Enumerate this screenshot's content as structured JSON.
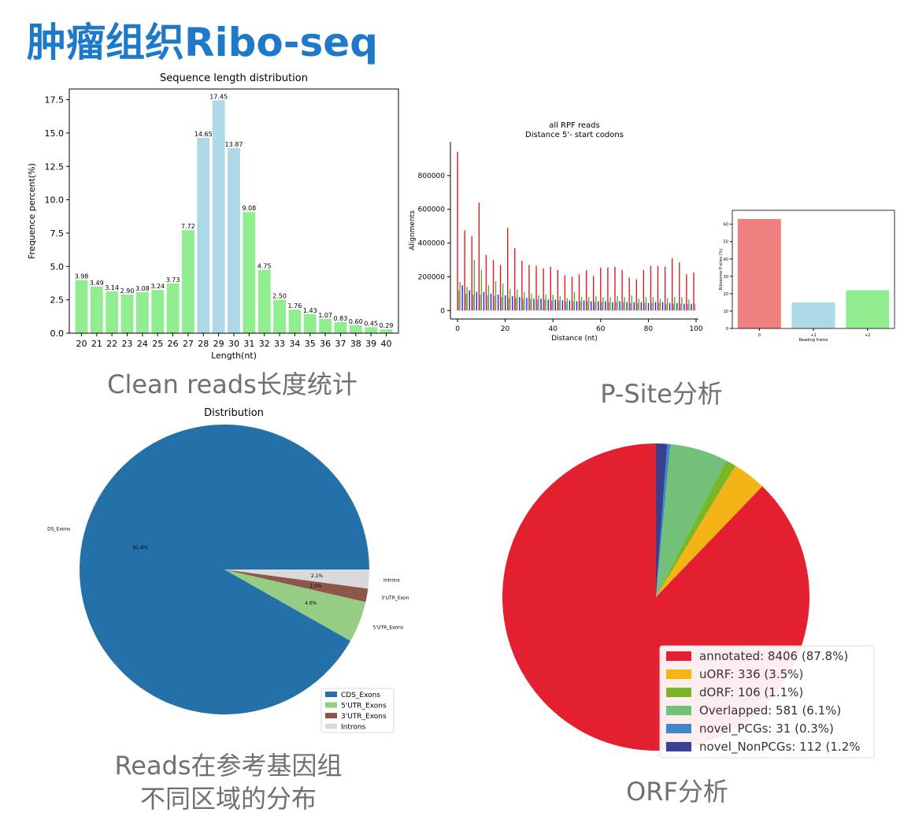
{
  "page_title": "肿瘤组织Ribo-seq",
  "captions": {
    "length": "Clean reads长度统计",
    "psite": "P-Site分析",
    "reads_line1": "Reads在参考基因组",
    "reads_line2": "不同区域的分布",
    "orf": "ORF分析"
  },
  "chart_data": [
    {
      "type": "bar",
      "title": "Sequence length distribution",
      "xlabel": "Length(nt)",
      "ylabel": "Frequence percent(%)",
      "ylim": [
        0,
        18.3
      ],
      "yticks": [
        "0.0",
        "2.5",
        "5.0",
        "7.5",
        "10.0",
        "12.5",
        "15.0",
        "17.5"
      ],
      "categories": [
        "20",
        "21",
        "22",
        "23",
        "24",
        "25",
        "26",
        "27",
        "28",
        "29",
        "30",
        "31",
        "32",
        "33",
        "34",
        "35",
        "36",
        "37",
        "38",
        "39",
        "40"
      ],
      "values": [
        3.98,
        3.49,
        3.14,
        2.9,
        3.08,
        3.24,
        3.73,
        7.72,
        14.65,
        17.45,
        13.87,
        9.08,
        4.75,
        2.5,
        1.76,
        1.43,
        1.07,
        0.83,
        0.6,
        0.45,
        0.29
      ],
      "labels": [
        "3.98",
        "3.49",
        "3.14",
        "2.90",
        "3.08",
        "3.24",
        "3.73",
        "7.72",
        "14.65",
        "17.45",
        "13.87",
        "9.08",
        "4.75",
        "2.50",
        "1.76",
        "1.43",
        "1.07",
        "0.83",
        "0.60",
        "0.45",
        "0.29"
      ],
      "highlight_categories": [
        "28",
        "29",
        "30"
      ],
      "colors": {
        "base": "#90ee90",
        "highlight": "#add8e6"
      }
    },
    {
      "type": "bar",
      "title_line1": "all RPF reads",
      "title_line2": "Distance 5'- start codons",
      "xlabel": "Distance (nt)",
      "ylabel": "Alignments",
      "xlim": [
        -3,
        101
      ],
      "ylim": [
        -50000,
        1000000
      ],
      "xticks": [
        "0",
        "20",
        "40",
        "60",
        "80",
        "100"
      ],
      "yticks": [
        "0",
        "200000",
        "400000",
        "600000",
        "800000"
      ],
      "series": [
        {
          "color": "#e41a1c",
          "x": [
            0,
            3,
            6,
            9,
            12,
            15,
            18,
            21,
            24,
            27,
            30,
            33,
            36,
            39,
            42,
            45,
            48,
            51,
            54,
            57,
            60,
            63,
            66,
            69,
            72,
            75,
            78,
            81,
            84,
            87,
            90,
            93,
            96,
            99
          ],
          "values": [
            940000,
            475000,
            440000,
            640000,
            330000,
            300000,
            270000,
            490000,
            370000,
            295000,
            270000,
            265000,
            250000,
            260000,
            240000,
            210000,
            200000,
            215000,
            240000,
            205000,
            255000,
            255000,
            260000,
            240000,
            195000,
            185000,
            240000,
            265000,
            265000,
            260000,
            310000,
            285000,
            215000,
            225000
          ]
        },
        {
          "color": "#4daf4a",
          "x": [
            1,
            4,
            7,
            10,
            13,
            16,
            19,
            22,
            25,
            28,
            31,
            34,
            37,
            40,
            43,
            46,
            49,
            52,
            55,
            58,
            61,
            64,
            67,
            70,
            73,
            76,
            79,
            82,
            85,
            88,
            91,
            94,
            97
          ],
          "values": [
            170000,
            140000,
            300000,
            240000,
            150000,
            175000,
            160000,
            130000,
            125000,
            110000,
            100000,
            90000,
            95000,
            95000,
            85000,
            75000,
            110000,
            80000,
            80000,
            85000,
            80000,
            80000,
            85000,
            80000,
            90000,
            70000,
            80000,
            80000,
            70000,
            75000,
            80000,
            80000,
            65000
          ]
        },
        {
          "color": "#2020e0",
          "x": [
            2,
            5,
            8,
            11,
            14,
            17,
            20,
            23,
            26,
            29,
            32,
            35,
            38,
            41,
            44,
            47,
            50,
            53,
            56,
            59,
            62,
            65,
            68,
            71,
            74,
            77,
            80,
            83,
            86,
            89,
            92,
            95,
            98
          ],
          "values": [
            150000,
            120000,
            110000,
            110000,
            100000,
            95000,
            90000,
            85000,
            80000,
            75000,
            70000,
            70000,
            65000,
            65000,
            60000,
            60000,
            55000,
            60000,
            55000,
            55000,
            55000,
            50000,
            55000,
            50000,
            50000,
            50000,
            45000,
            50000,
            50000,
            45000,
            45000,
            40000,
            40000
          ]
        },
        {
          "color": "#999999",
          "x": [
            0.5,
            3.5,
            6.5,
            9.5,
            12.5,
            15.5,
            18.5,
            21.5,
            24.5,
            27.5,
            30.5,
            33.5,
            36.5,
            39.5,
            42.5,
            45.5,
            48.5,
            51.5,
            54.5,
            57.5,
            60.5,
            63.5,
            66.5,
            69.5,
            72.5,
            75.5,
            78.5,
            81.5,
            84.5,
            87.5,
            90.5,
            93.5,
            96.5,
            99.5
          ],
          "values": [
            120000,
            100000,
            95000,
            95000,
            90000,
            85000,
            80000,
            75000,
            75000,
            70000,
            70000,
            65000,
            65000,
            60000,
            60000,
            55000,
            55000,
            55000,
            55000,
            50000,
            50000,
            50000,
            50000,
            50000,
            45000,
            45000,
            45000,
            45000,
            45000,
            40000,
            40000,
            40000,
            40000,
            40000
          ]
        }
      ]
    },
    {
      "type": "bar",
      "xlabel": "Reading frame",
      "ylabel": "Ribosome P-sites (%)",
      "ylim": [
        0,
        68
      ],
      "yticks": [
        "0",
        "10",
        "20",
        "30",
        "40",
        "50",
        "60"
      ],
      "categories": [
        "0",
        "+1",
        "+2"
      ],
      "values": [
        63,
        15,
        22
      ],
      "colors": [
        "#f08080",
        "#add8e6",
        "#90ee90"
      ]
    },
    {
      "type": "pie",
      "title": "Distribution",
      "slices": [
        {
          "label": "CDS_Exons",
          "value": 91.8,
          "pct_label": "91.8%",
          "color": "#2471a9"
        },
        {
          "label": "5'UTR_Exons",
          "value": 4.6,
          "pct_label": "4.6%",
          "color": "#96cd84"
        },
        {
          "label": "3'UTR_Exons",
          "value": 1.5,
          "pct_label": "1.5%",
          "color": "#8c564b"
        },
        {
          "label": "Introns",
          "value": 2.1,
          "pct_label": "2.1%",
          "color": "#d9d9d9"
        }
      ],
      "legend": {
        "placement": "lower-right",
        "entries": [
          "CDS_Exons",
          "5'UTR_Exons",
          "3'UTR_Exons",
          "Introns"
        ]
      }
    },
    {
      "type": "pie",
      "slices": [
        {
          "label": "annotated: 8406 (87.8%)",
          "value": 8406,
          "color": "#e41f2f"
        },
        {
          "label": "uORF: 336 (3.5%)",
          "value": 336,
          "color": "#f5b416"
        },
        {
          "label": "dORF: 106 (1.1%)",
          "value": 106,
          "color": "#7ab727"
        },
        {
          "label": "Overlapped: 581 (6.1%)",
          "value": 581,
          "color": "#72c07a"
        },
        {
          "label": "novel_PCGs: 31 (0.3%)",
          "value": 31,
          "color": "#3e86c6"
        },
        {
          "label": "novel_NonPCGs: 112 (1.2%",
          "value": 112,
          "color": "#3b3f8f"
        }
      ],
      "legend": {
        "placement": "lower-right"
      }
    }
  ]
}
